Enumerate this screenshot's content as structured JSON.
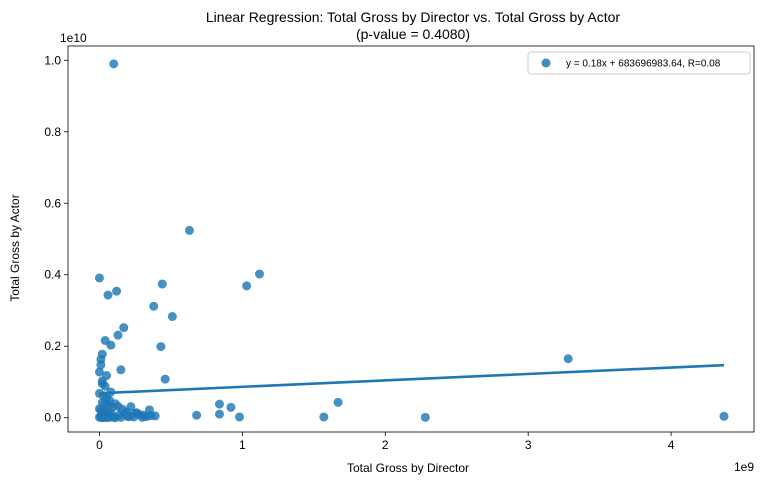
{
  "chart_data": {
    "type": "scatter",
    "title_line1": "Linear Regression: Total Gross by Director vs. Total Gross by Actor",
    "title_line2": "(p-value = 0.4080)",
    "xlabel": "Total Gross by Director",
    "ylabel": "Total Gross by Actor",
    "x_offset_label": "1e9",
    "y_offset_label": "1e10",
    "x_scale": 1000000000,
    "y_scale": 10000000000,
    "xlim": [
      -0.22,
      4.58
    ],
    "ylim": [
      -0.04,
      1.04
    ],
    "x_ticks": [
      0,
      1,
      2,
      3,
      4
    ],
    "x_tick_labels": [
      "0",
      "1",
      "2",
      "3",
      "4"
    ],
    "y_ticks": [
      0.0,
      0.2,
      0.4,
      0.6,
      0.8,
      1.0
    ],
    "y_tick_labels": [
      "0.0",
      "0.2",
      "0.4",
      "0.6",
      "0.8",
      "1.0"
    ],
    "grid": false,
    "legend_position": "top-right",
    "colors": {
      "points": "#1f77b4",
      "line": "#1f77b4"
    },
    "series": [
      {
        "name": "y = 0.18x + 683696983.64, R=0.08",
        "x": [
          0.1,
          0.63,
          1.12,
          0.44,
          1.03,
          0.0,
          0.12,
          0.06,
          0.38,
          0.51,
          0.17,
          0.13,
          0.04,
          0.43,
          0.08,
          0.02,
          0.01,
          0.01,
          0.15,
          0.05,
          0.46,
          0.0,
          0.02,
          0.02,
          0.04,
          0.08,
          0.0,
          0.03,
          0.05,
          0.07,
          0.02,
          0.04,
          0.06,
          0.09,
          0.0,
          0.01,
          0.03,
          0.05,
          0.11,
          0.13,
          0.16,
          0.19,
          0.22,
          0.25,
          0.28,
          0.31,
          0.35,
          0.39,
          0.01,
          0.02,
          0.04,
          0.06,
          0.08,
          0.1,
          0.14,
          0.18,
          0.21,
          0.26,
          0.33,
          0.36,
          0.0,
          0.01,
          0.02,
          0.03,
          0.05,
          0.07,
          0.09,
          0.11,
          0.15,
          0.2,
          0.24,
          0.3,
          0.84,
          0.92,
          0.84,
          0.68,
          0.98,
          1.67,
          1.57,
          2.28,
          3.28,
          4.37
        ],
        "y": [
          0.99,
          0.524,
          0.402,
          0.374,
          0.369,
          0.391,
          0.354,
          0.343,
          0.312,
          0.283,
          0.252,
          0.231,
          0.216,
          0.199,
          0.203,
          0.178,
          0.163,
          0.148,
          0.134,
          0.118,
          0.108,
          0.128,
          0.103,
          0.095,
          0.088,
          0.072,
          0.068,
          0.061,
          0.055,
          0.049,
          0.043,
          0.038,
          0.034,
          0.029,
          0.025,
          0.021,
          0.018,
          0.015,
          0.039,
          0.032,
          0.024,
          0.016,
          0.031,
          0.012,
          0.009,
          0.007,
          0.022,
          0.005,
          0.004,
          0.003,
          0.006,
          0.01,
          0.013,
          0.002,
          0.008,
          0.011,
          0.004,
          0.014,
          0.003,
          0.006,
          0.001,
          0.002,
          0.0,
          0.001,
          0.0,
          0.001,
          0.002,
          0.0,
          0.001,
          0.003,
          0.002,
          0.001,
          0.038,
          0.029,
          0.01,
          0.007,
          0.002,
          0.043,
          0.002,
          0.001,
          0.165,
          0.004
        ]
      }
    ],
    "regression": {
      "slope": 0.18,
      "intercept": 0.0684
    }
  }
}
